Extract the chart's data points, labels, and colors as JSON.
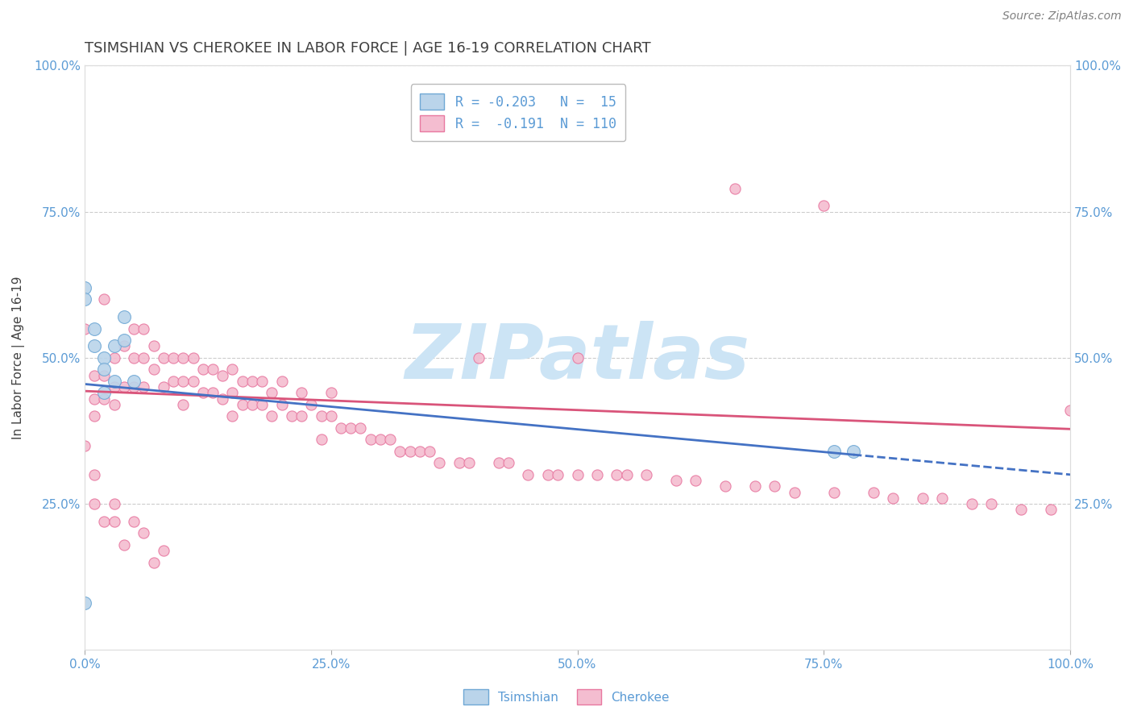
{
  "title": "TSIMSHIAN VS CHEROKEE IN LABOR FORCE | AGE 16-19 CORRELATION CHART",
  "source": "Source: ZipAtlas.com",
  "ylabel": "In Labor Force | Age 16-19",
  "legend_label1": "Tsimshian",
  "legend_label2": "Cherokee",
  "R1": -0.203,
  "N1": 15,
  "R2": -0.191,
  "N2": 110,
  "tsimshian_x": [
    0.0,
    0.0,
    0.0,
    0.01,
    0.01,
    0.02,
    0.02,
    0.02,
    0.03,
    0.03,
    0.04,
    0.04,
    0.05,
    0.76,
    0.78
  ],
  "tsimshian_y": [
    0.62,
    0.6,
    0.08,
    0.55,
    0.52,
    0.5,
    0.48,
    0.44,
    0.52,
    0.46,
    0.57,
    0.53,
    0.46,
    0.34,
    0.34
  ],
  "cherokee_x": [
    0.0,
    0.01,
    0.01,
    0.01,
    0.02,
    0.02,
    0.02,
    0.03,
    0.03,
    0.03,
    0.04,
    0.04,
    0.05,
    0.05,
    0.05,
    0.06,
    0.06,
    0.06,
    0.07,
    0.07,
    0.08,
    0.08,
    0.09,
    0.09,
    0.1,
    0.1,
    0.1,
    0.11,
    0.11,
    0.12,
    0.12,
    0.13,
    0.13,
    0.14,
    0.14,
    0.15,
    0.15,
    0.15,
    0.16,
    0.16,
    0.17,
    0.17,
    0.18,
    0.18,
    0.19,
    0.19,
    0.2,
    0.2,
    0.21,
    0.22,
    0.22,
    0.23,
    0.24,
    0.24,
    0.25,
    0.25,
    0.26,
    0.27,
    0.28,
    0.29,
    0.3,
    0.31,
    0.32,
    0.33,
    0.34,
    0.35,
    0.36,
    0.38,
    0.39,
    0.4,
    0.42,
    0.43,
    0.45,
    0.47,
    0.48,
    0.5,
    0.5,
    0.52,
    0.54,
    0.55,
    0.57,
    0.6,
    0.62,
    0.65,
    0.66,
    0.68,
    0.7,
    0.72,
    0.75,
    0.76,
    0.8,
    0.82,
    0.85,
    0.87,
    0.9,
    0.92,
    0.95,
    0.98,
    1.0,
    0.0,
    0.01,
    0.01,
    0.02,
    0.03,
    0.03,
    0.04,
    0.05,
    0.06,
    0.07,
    0.08
  ],
  "cherokee_y": [
    0.55,
    0.47,
    0.43,
    0.4,
    0.47,
    0.43,
    0.6,
    0.5,
    0.45,
    0.42,
    0.52,
    0.45,
    0.55,
    0.5,
    0.45,
    0.55,
    0.5,
    0.45,
    0.52,
    0.48,
    0.5,
    0.45,
    0.5,
    0.46,
    0.5,
    0.46,
    0.42,
    0.5,
    0.46,
    0.48,
    0.44,
    0.48,
    0.44,
    0.47,
    0.43,
    0.48,
    0.44,
    0.4,
    0.46,
    0.42,
    0.46,
    0.42,
    0.46,
    0.42,
    0.44,
    0.4,
    0.46,
    0.42,
    0.4,
    0.44,
    0.4,
    0.42,
    0.4,
    0.36,
    0.44,
    0.4,
    0.38,
    0.38,
    0.38,
    0.36,
    0.36,
    0.36,
    0.34,
    0.34,
    0.34,
    0.34,
    0.32,
    0.32,
    0.32,
    0.5,
    0.32,
    0.32,
    0.3,
    0.3,
    0.3,
    0.5,
    0.3,
    0.3,
    0.3,
    0.3,
    0.3,
    0.29,
    0.29,
    0.28,
    0.79,
    0.28,
    0.28,
    0.27,
    0.76,
    0.27,
    0.27,
    0.26,
    0.26,
    0.26,
    0.25,
    0.25,
    0.24,
    0.24,
    0.41,
    0.35,
    0.3,
    0.25,
    0.22,
    0.25,
    0.22,
    0.18,
    0.22,
    0.2,
    0.15,
    0.17
  ],
  "color_tsimshian_fill": "#bad4ea",
  "color_tsimshian_edge": "#6fa8d5",
  "color_cherokee_fill": "#f4bdd0",
  "color_cherokee_edge": "#e878a0",
  "color_line_tsimshian": "#4472c4",
  "color_line_cherokee": "#d9547a",
  "color_axis_labels": "#5b9bd5",
  "color_title": "#404040",
  "color_grid": "#cccccc",
  "color_source": "#808080",
  "background": "#ffffff",
  "watermark_text": "ZIPatlas",
  "watermark_color": "#cce4f5",
  "xlim": [
    0.0,
    1.0
  ],
  "ylim": [
    0.0,
    1.0
  ],
  "xtick_labels": [
    "0.0%",
    "25.0%",
    "50.0%",
    "75.0%",
    "100.0%"
  ],
  "xtick_vals": [
    0.0,
    0.25,
    0.5,
    0.75,
    1.0
  ],
  "ytick_labels": [
    "25.0%",
    "50.0%",
    "75.0%",
    "100.0%"
  ],
  "ytick_vals": [
    0.25,
    0.5,
    0.75,
    1.0
  ],
  "tsim_line_intercept": 0.455,
  "tsim_line_slope": -0.155,
  "tsim_line_solid_end": 0.78,
  "cher_line_intercept": 0.443,
  "cher_line_slope": -0.065,
  "marker_size_tsimshian": 130,
  "marker_size_cherokee": 90,
  "title_fontsize": 13,
  "label_fontsize": 11,
  "tick_fontsize": 11,
  "legend_fontsize": 12,
  "source_fontsize": 10
}
